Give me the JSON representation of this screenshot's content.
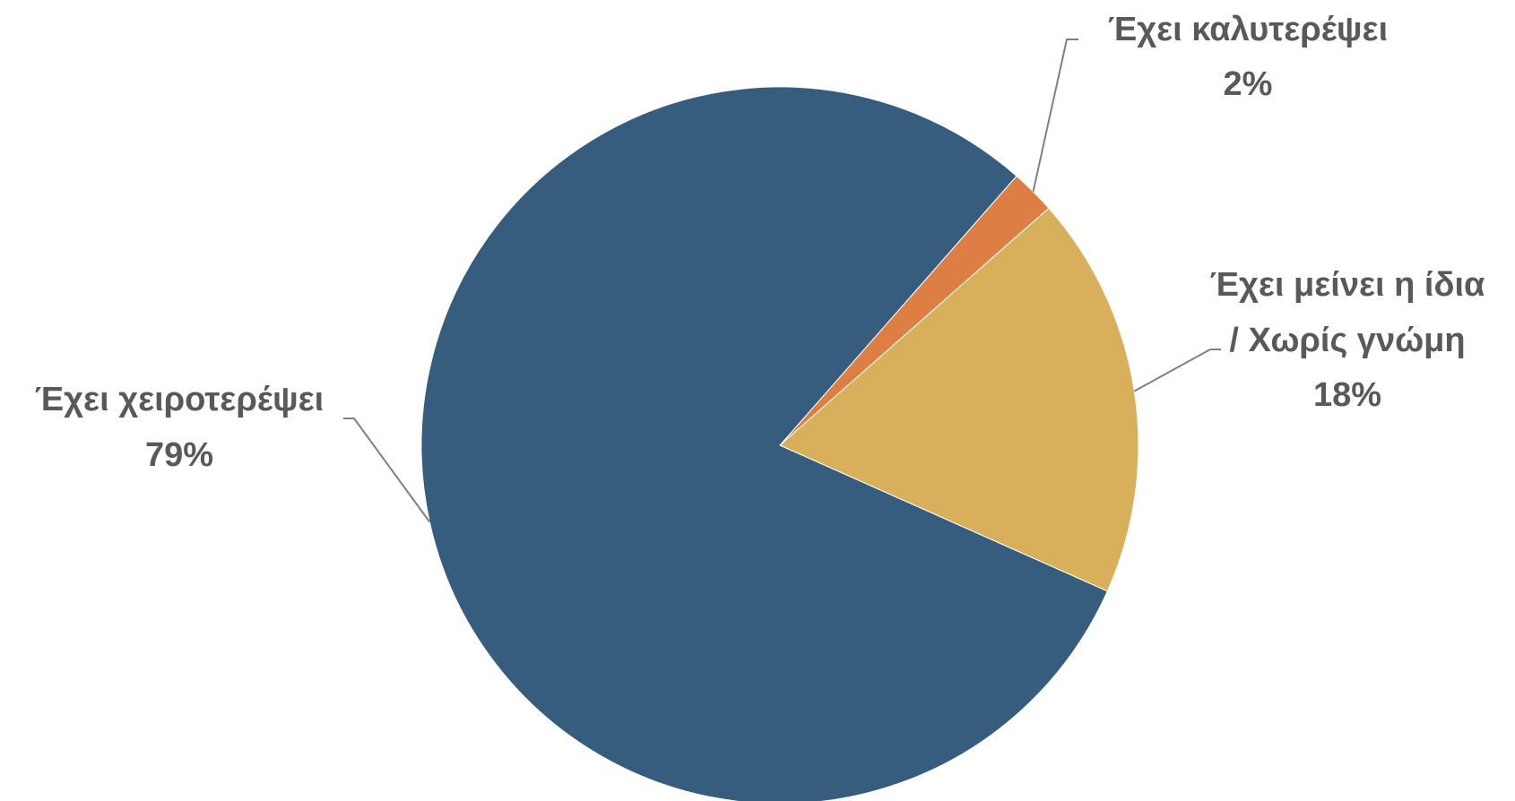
{
  "chart_data": {
    "type": "pie",
    "title": "",
    "slices": [
      {
        "name": "Έχει χειροτερέψει",
        "label_lines": [
          "Έχει χειροτερέψει"
        ],
        "percent_label": "79%",
        "value": 79,
        "color": "#365D7E"
      },
      {
        "name": "Έχει καλυτερέψει",
        "label_lines": [
          "Έχει καλυτερέψει"
        ],
        "percent_label": "2%",
        "value": 2,
        "color": "#DD7F45"
      },
      {
        "name": "Έχει μείνει η ίδια / Χωρίς γνώμη",
        "label_lines": [
          "Έχει μείνει η ίδια",
          "/ Χωρίς γνώμη"
        ],
        "percent_label": "18%",
        "value": 18,
        "color": "#D8B05C"
      }
    ],
    "label_color": "#595959",
    "leader_line_color": "#808080",
    "legend": "none"
  }
}
